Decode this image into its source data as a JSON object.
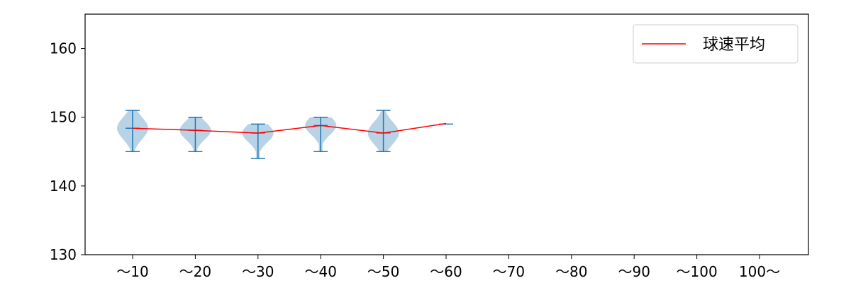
{
  "chart_data": {
    "type": "violin",
    "categories": [
      "〜10",
      "〜20",
      "〜30",
      "〜40",
      "〜50",
      "〜60",
      "〜70",
      "〜80",
      "〜90",
      "〜100",
      "100〜"
    ],
    "ylim": [
      130,
      165
    ],
    "yticks": [
      130,
      140,
      150,
      160
    ],
    "grid": false,
    "legend_position": "top-right",
    "series": [
      {
        "name": "球速平均",
        "color": "#ff0000",
        "values": [
          148.4,
          148.1,
          147.7,
          148.8,
          147.7,
          149.1,
          null,
          null,
          null,
          null,
          null
        ]
      }
    ],
    "distributions": [
      {
        "category": "〜10",
        "min": 145,
        "max": 151,
        "median": 148.4
      },
      {
        "category": "〜20",
        "min": 145,
        "max": 150,
        "median": 148.1
      },
      {
        "category": "〜30",
        "min": 144,
        "max": 149,
        "median": 147.7
      },
      {
        "category": "〜40",
        "min": 145,
        "max": 150,
        "median": 148.8
      },
      {
        "category": "〜50",
        "min": 145,
        "max": 151,
        "median": 147.7
      },
      {
        "category": "〜60",
        "min": 149,
        "max": 149,
        "median": 149.1
      }
    ],
    "violin_color": "#b8d3e6",
    "whisker_color": "#1f77b4"
  }
}
